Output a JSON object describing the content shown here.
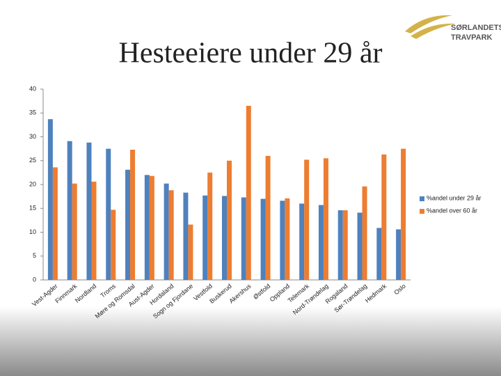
{
  "logo": {
    "line1": "SØRLANDETS",
    "line2": "TRAVPARK"
  },
  "chart_data": {
    "type": "bar",
    "title": "Hesteeiere under 29 år",
    "categories": [
      "Vest-Agder",
      "Finnmark",
      "Nordland",
      "Troms",
      "Møre og Romsdal",
      "Aust-Agder",
      "Hordaland",
      "Sogn og Fjordane",
      "Vestfold",
      "Buskerud",
      "Akershus",
      "Østfold",
      "Oppland",
      "Telemark",
      "Nord-Trøndelag",
      "Rogaland",
      "Sør-Trøndelag",
      "Hedmark",
      "Oslo"
    ],
    "series": [
      {
        "name": "%andel under 29 år",
        "color": "#4f81bd",
        "values": [
          33.7,
          29.1,
          28.8,
          27.5,
          23.1,
          22,
          20.2,
          18.3,
          17.7,
          17.6,
          17.3,
          17,
          16.6,
          16,
          15.7,
          14.6,
          14.1,
          10.9,
          10.6
        ]
      },
      {
        "name": "%andel over 60 år",
        "color": "#ed7d31",
        "values": [
          23.6,
          20.2,
          20.6,
          14.7,
          27.3,
          21.8,
          18.8,
          11.6,
          22.5,
          25,
          36.5,
          26,
          17.1,
          25.2,
          25.5,
          14.6,
          19.6,
          26.3,
          27.5
        ]
      }
    ],
    "ylim": [
      0,
      40
    ],
    "yticks": [
      0,
      5,
      10,
      15,
      20,
      25,
      30,
      35,
      40
    ],
    "grid": false,
    "legend": "right"
  }
}
